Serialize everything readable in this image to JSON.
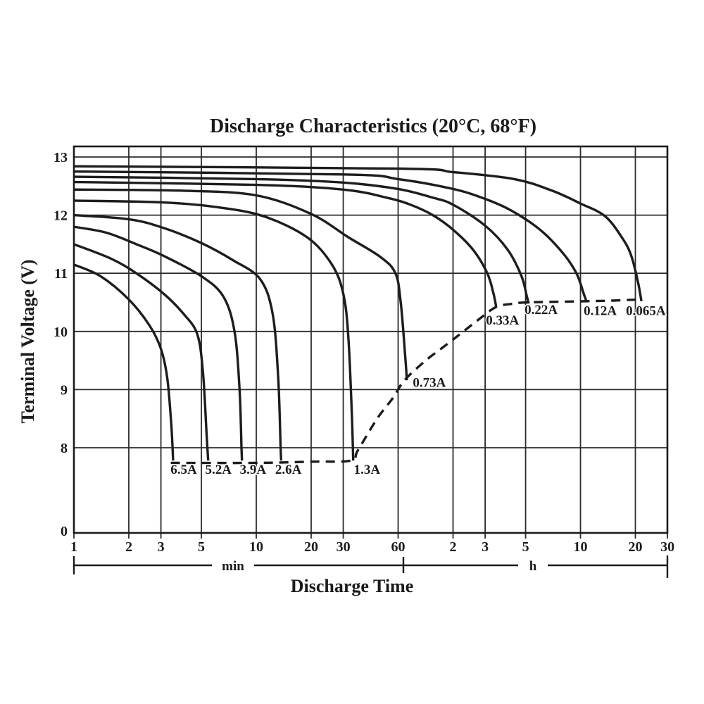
{
  "title": "Discharge Characteristics (20°C, 68°F)",
  "x_axis": {
    "title": "Discharge Time",
    "unit_minutes": "min",
    "unit_hours": "h"
  },
  "y_axis": {
    "title": "Terminal Voltage (V)"
  },
  "chart_data": {
    "type": "line",
    "title": "Discharge Characteristics (20°C, 68°F)",
    "xlabel": "Discharge Time",
    "ylabel": "Terminal Voltage (V)",
    "x_scale": "log",
    "x_range_minutes": [
      1,
      1800
    ],
    "y_linear_range": [
      8,
      13.2
    ],
    "y_axis_break_to_zero": true,
    "grid": true,
    "x_ticks": [
      {
        "t": 1,
        "label": "1",
        "unit": "min"
      },
      {
        "t": 2,
        "label": "2",
        "unit": "min"
      },
      {
        "t": 3,
        "label": "3",
        "unit": "min"
      },
      {
        "t": 5,
        "label": "5",
        "unit": "min"
      },
      {
        "t": 10,
        "label": "10",
        "unit": "min"
      },
      {
        "t": 20,
        "label": "20",
        "unit": "min"
      },
      {
        "t": 30,
        "label": "30",
        "unit": "min"
      },
      {
        "t": 60,
        "label": "60",
        "unit": "min"
      },
      {
        "t": 120,
        "label": "2",
        "unit": "h"
      },
      {
        "t": 180,
        "label": "3",
        "unit": "h"
      },
      {
        "t": 300,
        "label": "5",
        "unit": "h"
      },
      {
        "t": 600,
        "label": "10",
        "unit": "h"
      },
      {
        "t": 1200,
        "label": "20",
        "unit": "h"
      },
      {
        "t": 1800,
        "label": "30",
        "unit": "h"
      }
    ],
    "y_ticks": [
      {
        "v": 13,
        "label": "13"
      },
      {
        "v": 12,
        "label": "12"
      },
      {
        "v": 11,
        "label": "11"
      },
      {
        "v": 10,
        "label": "10"
      },
      {
        "v": 9,
        "label": "9"
      },
      {
        "v": 8,
        "label": "8"
      },
      {
        "v": 0,
        "label": "0",
        "on_break": true
      }
    ],
    "series": [
      {
        "label": "6.5A",
        "label_at": [
          4.0,
          7.55
        ],
        "points": [
          [
            1,
            11.15
          ],
          [
            1.4,
            10.95
          ],
          [
            2,
            10.55
          ],
          [
            2.6,
            10.1
          ],
          [
            3,
            9.7
          ],
          [
            3.25,
            9.2
          ],
          [
            3.42,
            8.4
          ],
          [
            3.5,
            7.78
          ]
        ]
      },
      {
        "label": "5.2A",
        "label_at": [
          6.2,
          7.55
        ],
        "points": [
          [
            1,
            11.5
          ],
          [
            1.6,
            11.25
          ],
          [
            2.2,
            11.0
          ],
          [
            3.1,
            10.65
          ],
          [
            4,
            10.3
          ],
          [
            4.75,
            9.95
          ],
          [
            5.1,
            9.3
          ],
          [
            5.35,
            8.2
          ],
          [
            5.45,
            7.78
          ]
        ]
      },
      {
        "label": "3.9A",
        "label_at": [
          9.6,
          7.55
        ],
        "points": [
          [
            1,
            11.8
          ],
          [
            1.5,
            11.7
          ],
          [
            2.2,
            11.5
          ],
          [
            3.1,
            11.3
          ],
          [
            5,
            10.95
          ],
          [
            6.6,
            10.6
          ],
          [
            7.6,
            10.0
          ],
          [
            8.1,
            9.0
          ],
          [
            8.3,
            8.0
          ],
          [
            8.35,
            7.78
          ]
        ]
      },
      {
        "label": "2.6A",
        "label_at": [
          15,
          7.55
        ],
        "points": [
          [
            1,
            12.0
          ],
          [
            2,
            11.93
          ],
          [
            3.1,
            11.78
          ],
          [
            5,
            11.52
          ],
          [
            7.5,
            11.22
          ],
          [
            10.5,
            10.9
          ],
          [
            12.3,
            10.3
          ],
          [
            13.2,
            9.2
          ],
          [
            13.6,
            8.0
          ],
          [
            13.7,
            7.78
          ]
        ]
      },
      {
        "label": "1.3A",
        "label_at": [
          40.5,
          7.55
        ],
        "points": [
          [
            1,
            12.25
          ],
          [
            3,
            12.22
          ],
          [
            6,
            12.14
          ],
          [
            11,
            11.98
          ],
          [
            19,
            11.62
          ],
          [
            26,
            11.15
          ],
          [
            30,
            10.65
          ],
          [
            32,
            9.9
          ],
          [
            33.5,
            8.5
          ],
          [
            34,
            7.78
          ]
        ]
      },
      {
        "label": "0.73A",
        "label_at": [
          89,
          9.05
        ],
        "points": [
          [
            1,
            12.44
          ],
          [
            4,
            12.42
          ],
          [
            10,
            12.34
          ],
          [
            20,
            12.02
          ],
          [
            32,
            11.62
          ],
          [
            48,
            11.28
          ],
          [
            58,
            11.0
          ],
          [
            62,
            10.5
          ],
          [
            65.5,
            9.6
          ],
          [
            67,
            9.16
          ]
        ]
      },
      {
        "label": "0.33A",
        "label_at": [
          224,
          10.12
        ],
        "points": [
          [
            1,
            12.57
          ],
          [
            10,
            12.52
          ],
          [
            30,
            12.44
          ],
          [
            52,
            12.3
          ],
          [
            70,
            12.18
          ],
          [
            93,
            12.0
          ],
          [
            120,
            11.75
          ],
          [
            155,
            11.4
          ],
          [
            185,
            11.0
          ],
          [
            200,
            10.65
          ],
          [
            207,
            10.42
          ]
        ]
      },
      {
        "label": "0.22A",
        "label_at": [
          365,
          10.3
        ],
        "points": [
          [
            1,
            12.66
          ],
          [
            10,
            12.62
          ],
          [
            30,
            12.56
          ],
          [
            60,
            12.45
          ],
          [
            93,
            12.3
          ],
          [
            120,
            12.18
          ],
          [
            180,
            11.82
          ],
          [
            240,
            11.4
          ],
          [
            285,
            10.95
          ],
          [
            305,
            10.6
          ],
          [
            312,
            10.48
          ]
        ]
      },
      {
        "label": "0.12A",
        "label_at": [
          770,
          10.28
        ],
        "points": [
          [
            1,
            12.75
          ],
          [
            30,
            12.7
          ],
          [
            60,
            12.62
          ],
          [
            120,
            12.45
          ],
          [
            180,
            12.28
          ],
          [
            250,
            12.08
          ],
          [
            360,
            11.75
          ],
          [
            480,
            11.35
          ],
          [
            570,
            11.0
          ],
          [
            625,
            10.65
          ],
          [
            650,
            10.5
          ]
        ]
      },
      {
        "label": "0.065A",
        "label_at": [
          1370,
          10.28
        ],
        "points": [
          [
            1,
            12.84
          ],
          [
            60,
            12.8
          ],
          [
            120,
            12.74
          ],
          [
            260,
            12.62
          ],
          [
            420,
            12.42
          ],
          [
            600,
            12.2
          ],
          [
            820,
            11.98
          ],
          [
            1020,
            11.6
          ],
          [
            1140,
            11.3
          ],
          [
            1240,
            10.85
          ],
          [
            1295,
            10.52
          ]
        ]
      }
    ],
    "cutoff_line": {
      "style": "dashed",
      "points": [
        [
          3.4,
          7.74
        ],
        [
          10,
          7.74
        ],
        [
          20,
          7.76
        ],
        [
          33,
          7.78
        ],
        [
          36,
          7.95
        ],
        [
          46,
          8.5
        ],
        [
          56,
          8.85
        ],
        [
          65,
          9.16
        ],
        [
          85,
          9.5
        ],
        [
          105,
          9.72
        ],
        [
          127,
          9.92
        ],
        [
          165,
          10.2
        ],
        [
          207,
          10.42
        ],
        [
          260,
          10.48
        ],
        [
          312,
          10.5
        ],
        [
          650,
          10.52
        ],
        [
          900,
          10.53
        ],
        [
          1295,
          10.55
        ]
      ]
    },
    "legend_position": "labels-on-curves",
    "line_color": "#1d1d1d"
  }
}
